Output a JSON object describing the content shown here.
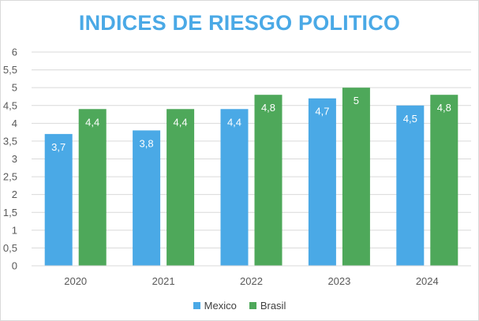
{
  "chart_data": {
    "type": "bar",
    "title": "INDICES DE RIESGO POLITICO",
    "categories": [
      "2020",
      "2021",
      "2022",
      "2023",
      "2024"
    ],
    "series": [
      {
        "name": "Mexico",
        "values": [
          3.7,
          3.8,
          4.4,
          4.7,
          4.5
        ],
        "labels": [
          "3,7",
          "3,8",
          "4,4",
          "4,7",
          "4,5"
        ],
        "color": "#4aa9e6"
      },
      {
        "name": "Brasil",
        "values": [
          4.4,
          4.4,
          4.8,
          5,
          4.8
        ],
        "labels": [
          "4,4",
          "4,4",
          "4,8",
          "5",
          "4,8"
        ],
        "color": "#4ea85a"
      }
    ],
    "ylim": [
      0,
      6
    ],
    "yticks": [
      0,
      0.5,
      1,
      1.5,
      2,
      2.5,
      3,
      3.5,
      4,
      4.5,
      5,
      5.5,
      6
    ],
    "ytick_labels": [
      "0",
      "0,5",
      "1",
      "1,5",
      "2",
      "2,5",
      "3",
      "3,5",
      "4",
      "4,5",
      "5",
      "5,5",
      "6"
    ],
    "grid": true,
    "legend_position": "bottom",
    "title_color": "#4aa9e6"
  }
}
